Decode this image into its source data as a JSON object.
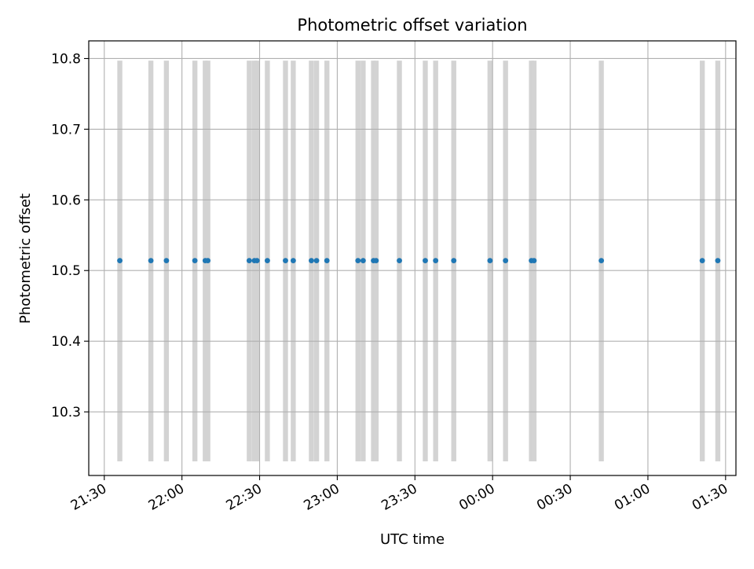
{
  "chart_data": {
    "type": "scatter",
    "title": "Photometric offset variation",
    "xlabel": "UTC time",
    "ylabel": "Photometric offset",
    "x_axis": {
      "kind": "time",
      "range": [
        "21:24",
        "01:34"
      ],
      "ticks": [
        "21:30",
        "22:00",
        "22:30",
        "23:00",
        "23:30",
        "00:00",
        "00:30",
        "01:00",
        "01:30"
      ]
    },
    "y_axis": {
      "range": [
        10.21,
        10.825
      ],
      "ticks": [
        "10.3",
        "10.4",
        "10.5",
        "10.6",
        "10.7",
        "10.8"
      ]
    },
    "grid": true,
    "colors": {
      "points": "#1f77b4",
      "bands": "#d3d3d3",
      "grid": "#b0b0b0"
    },
    "band_y_range": [
      10.23,
      10.797
    ],
    "series": [
      {
        "values": [
          {
            "x": "21:36",
            "y": 10.514
          },
          {
            "x": "21:48",
            "y": 10.514
          },
          {
            "x": "21:54",
            "y": 10.514
          },
          {
            "x": "22:05",
            "y": 10.514
          },
          {
            "x": "22:09",
            "y": 10.514
          },
          {
            "x": "22:10",
            "y": 10.514
          },
          {
            "x": "22:26",
            "y": 10.514
          },
          {
            "x": "22:28",
            "y": 10.514
          },
          {
            "x": "22:29",
            "y": 10.514
          },
          {
            "x": "22:33",
            "y": 10.514
          },
          {
            "x": "22:40",
            "y": 10.514
          },
          {
            "x": "22:43",
            "y": 10.514
          },
          {
            "x": "22:50",
            "y": 10.514
          },
          {
            "x": "22:52",
            "y": 10.514
          },
          {
            "x": "22:56",
            "y": 10.514
          },
          {
            "x": "23:08",
            "y": 10.514
          },
          {
            "x": "23:10",
            "y": 10.514
          },
          {
            "x": "23:14",
            "y": 10.514
          },
          {
            "x": "23:15",
            "y": 10.514
          },
          {
            "x": "23:24",
            "y": 10.514
          },
          {
            "x": "23:34",
            "y": 10.514
          },
          {
            "x": "23:38",
            "y": 10.514
          },
          {
            "x": "23:45",
            "y": 10.514
          },
          {
            "x": "23:59",
            "y": 10.514
          },
          {
            "x": "00:05",
            "y": 10.514
          },
          {
            "x": "00:15",
            "y": 10.514
          },
          {
            "x": "00:16",
            "y": 10.514
          },
          {
            "x": "00:42",
            "y": 10.514
          },
          {
            "x": "01:21",
            "y": 10.514
          },
          {
            "x": "01:27",
            "y": 10.514
          }
        ]
      }
    ],
    "bands": [
      "21:36",
      "21:48",
      "21:54",
      "22:05",
      "22:09",
      "22:10",
      "22:26",
      "22:28",
      "22:29",
      "22:33",
      "22:40",
      "22:43",
      "22:50",
      "22:52",
      "22:56",
      "23:08",
      "23:10",
      "23:14",
      "23:15",
      "23:24",
      "23:34",
      "23:38",
      "23:45",
      "23:59",
      "00:05",
      "00:15",
      "00:16",
      "00:42",
      "01:21",
      "01:27"
    ]
  }
}
